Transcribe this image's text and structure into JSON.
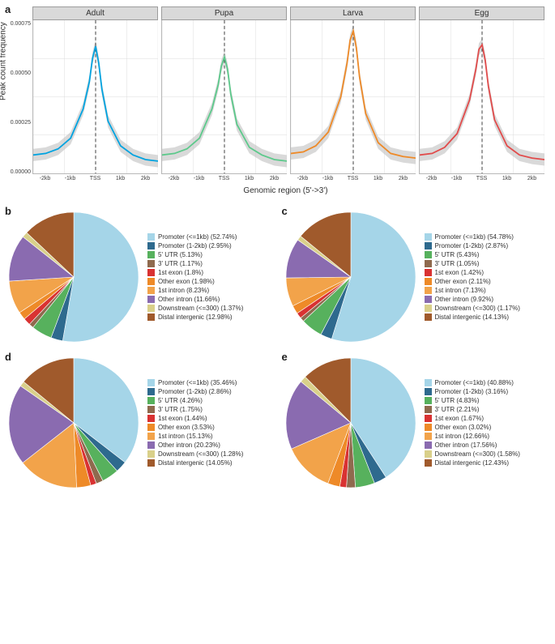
{
  "panel_a": {
    "label": "a",
    "yaxis_label": "Peak count frequency",
    "xaxis_label": "Genomic region (5'->3')",
    "yticks": [
      "0.00075",
      "0.00050",
      "0.00025",
      "0.00000"
    ],
    "xticks": [
      "-2kb",
      "-1kb",
      "TSS",
      "1kb",
      "2kb"
    ],
    "line_width": 1.8,
    "ci_color": "#bfbfbf",
    "ci_opacity": 0.6,
    "dash_color": "#404040",
    "grid_color": "#dcdcdc",
    "ylim": [
      0,
      0.001
    ],
    "subplots": [
      {
        "title": "Adult",
        "line_color": "#00a3e0",
        "x": [
          -2000,
          -1600,
          -1200,
          -800,
          -400,
          -200,
          -100,
          0,
          100,
          200,
          400,
          800,
          1200,
          1600,
          2000
        ],
        "y": [
          0.00012,
          0.00013,
          0.00016,
          0.00023,
          0.00042,
          0.0006,
          0.00075,
          0.00083,
          0.00072,
          0.00055,
          0.00034,
          0.00018,
          0.00012,
          9e-05,
          8e-05
        ]
      },
      {
        "title": "Pupa",
        "line_color": "#5cc98b",
        "x": [
          -2000,
          -1600,
          -1200,
          -800,
          -400,
          -200,
          -100,
          0,
          100,
          200,
          400,
          800,
          1200,
          1600,
          2000
        ],
        "y": [
          0.00012,
          0.00013,
          0.00016,
          0.00023,
          0.00042,
          0.00058,
          0.0007,
          0.00076,
          0.00068,
          0.00052,
          0.00032,
          0.00017,
          0.00012,
          9e-05,
          8e-05
        ]
      },
      {
        "title": "Larva",
        "line_color": "#ee8a28",
        "x": [
          -2000,
          -1600,
          -1200,
          -800,
          -400,
          -200,
          -100,
          0,
          100,
          200,
          400,
          800,
          1200,
          1600,
          2000
        ],
        "y": [
          0.00013,
          0.00014,
          0.00018,
          0.00027,
          0.0005,
          0.00072,
          0.00087,
          0.00093,
          0.00082,
          0.00063,
          0.00039,
          0.0002,
          0.00013,
          0.00011,
          0.0001
        ]
      },
      {
        "title": "Egg",
        "line_color": "#e14b4b",
        "x": [
          -2000,
          -1600,
          -1200,
          -800,
          -400,
          -200,
          -100,
          0,
          100,
          200,
          400,
          800,
          1200,
          1600,
          2000
        ],
        "y": [
          0.00012,
          0.00013,
          0.00017,
          0.00026,
          0.00048,
          0.00068,
          0.00081,
          0.00084,
          0.00074,
          0.00057,
          0.00035,
          0.00018,
          0.00012,
          0.0001,
          9e-05
        ]
      }
    ]
  },
  "pie_colors": {
    "Promoter (<=1kb)": "#a5d5e8",
    "Promoter (1-2kb)": "#2e6a8e",
    "5' UTR": "#57b15d",
    "3' UTR": "#8f6a4e",
    "1st exon": "#d93232",
    "Other exon": "#ee8a28",
    "1st intron": "#f2a34a",
    "Other intron": "#8a6bb0",
    "Downstream (<=300)": "#d9d08a",
    "Distal intergenic": "#a05a2c"
  },
  "category_order": [
    "Promoter (<=1kb)",
    "Promoter (1-2kb)",
    "5' UTR",
    "3' UTR",
    "1st exon",
    "Other exon",
    "1st intron",
    "Other intron",
    "Downstream (<=300)",
    "Distal intergenic"
  ],
  "pies": [
    {
      "label": "b",
      "values": {
        "Promoter (<=1kb)": 52.74,
        "Promoter (1-2kb)": 2.95,
        "5' UTR": 5.13,
        "3' UTR": 1.17,
        "1st exon": 1.8,
        "Other exon": 1.98,
        "1st intron": 8.23,
        "Other intron": 11.66,
        "Downstream (<=300)": 1.37,
        "Distal intergenic": 12.98
      }
    },
    {
      "label": "c",
      "values": {
        "Promoter (<=1kb)": 54.78,
        "Promoter (1-2kb)": 2.87,
        "5' UTR": 5.43,
        "3' UTR": 1.05,
        "1st exon": 1.42,
        "Other exon": 2.11,
        "1st intron": 7.13,
        "Other intron": 9.92,
        "Downstream (<=300)": 1.17,
        "Distal intergenic": 14.13
      }
    },
    {
      "label": "d",
      "values": {
        "Promoter (<=1kb)": 35.46,
        "Promoter (1-2kb)": 2.86,
        "5' UTR": 4.26,
        "3' UTR": 1.75,
        "1st exon": 1.44,
        "Other exon": 3.53,
        "1st intron": 15.13,
        "Other intron": 20.23,
        "Downstream (<=300)": 1.28,
        "Distal intergenic": 14.05
      }
    },
    {
      "label": "e",
      "values": {
        "Promoter (<=1kb)": 40.88,
        "Promoter (1-2kb)": 3.16,
        "5' UTR": 4.83,
        "3' UTR": 2.21,
        "1st exon": 1.67,
        "Other exon": 3.02,
        "1st intron": 12.66,
        "Other intron": 17.56,
        "Downstream (<=300)": 1.58,
        "Distal intergenic": 12.43
      }
    }
  ]
}
